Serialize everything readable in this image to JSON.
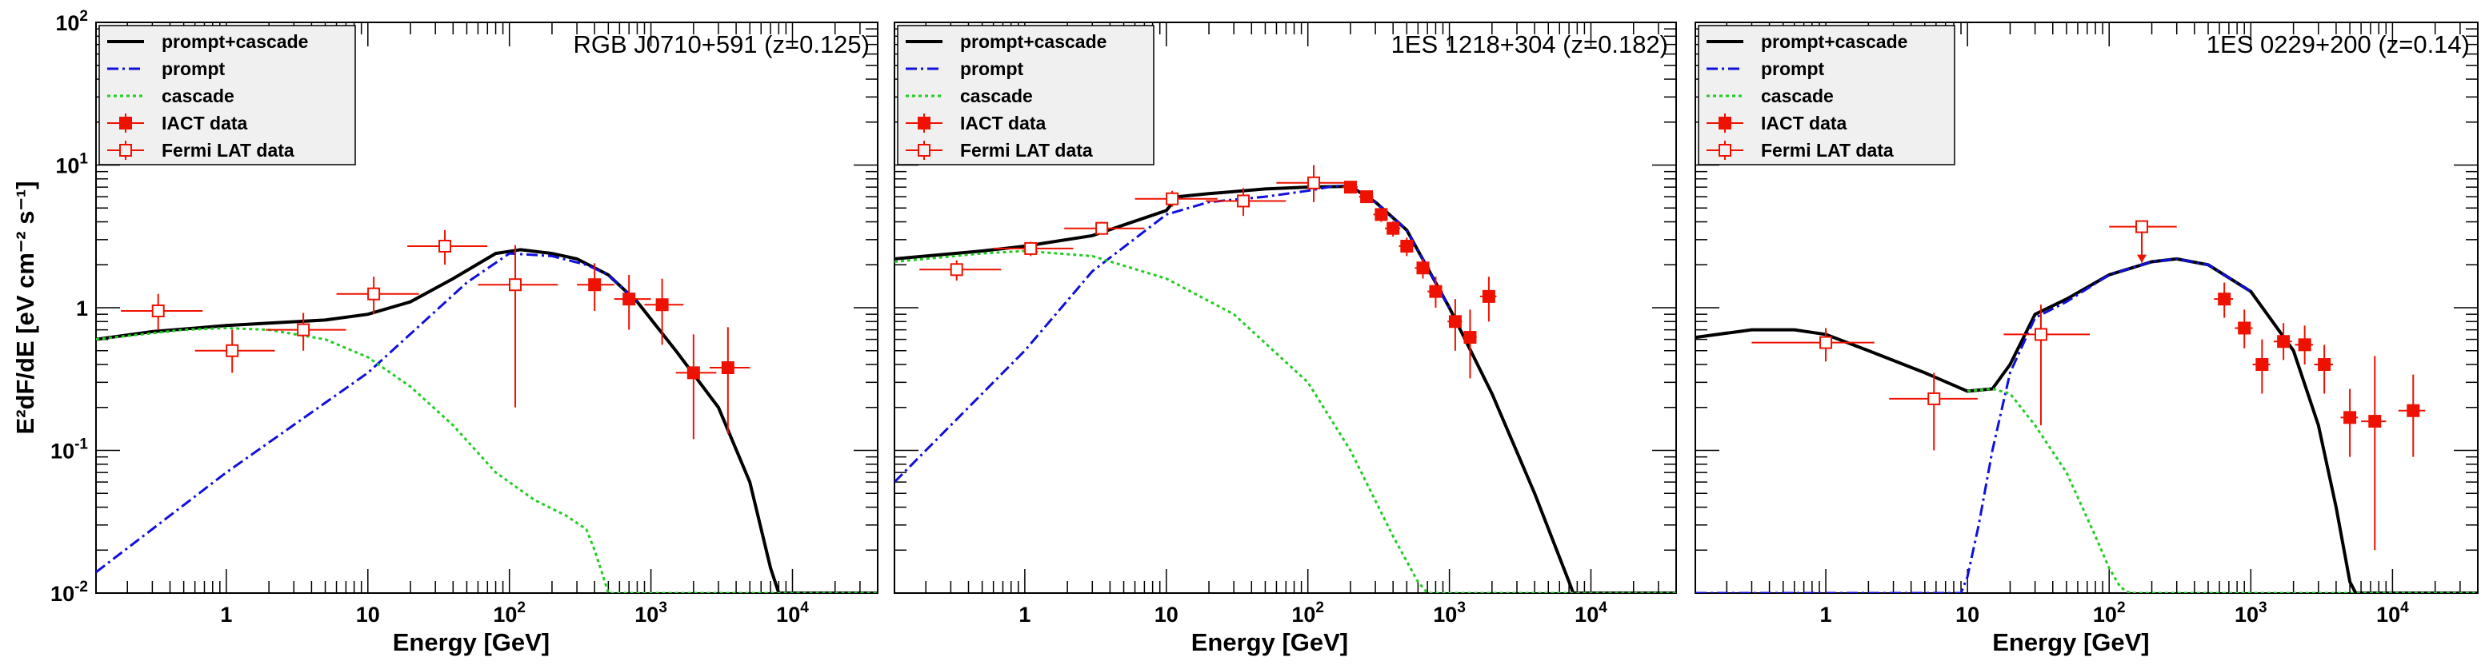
{
  "chart_data": [
    {
      "type": "line",
      "title": "RGB J0710+591 (z=0.125)",
      "xlabel": "Energy [GeV]",
      "ylabel": "E²dF/dE [eV cm⁻² s⁻¹]",
      "xscale": "log",
      "yscale": "log",
      "xlim": [
        0.12,
        40000
      ],
      "ylim": [
        0.01,
        100
      ],
      "legend": [
        "prompt+cascade",
        "prompt",
        "cascade",
        "IACT data",
        "Fermi LAT data"
      ],
      "series": [
        {
          "name": "prompt+cascade",
          "x": [
            0.12,
            0.3,
            1,
            2,
            5,
            10,
            20,
            40,
            80,
            120,
            200,
            300,
            500,
            800,
            1500,
            3000,
            5000,
            7000,
            8000,
            40000
          ],
          "y": [
            0.6,
            0.68,
            0.75,
            0.78,
            0.82,
            0.9,
            1.1,
            1.6,
            2.4,
            2.55,
            2.4,
            2.2,
            1.7,
            1.1,
            0.5,
            0.2,
            0.06,
            0.015,
            0.01,
            0.01
          ]
        },
        {
          "name": "prompt",
          "x": [
            0.12,
            1,
            10,
            50,
            100,
            200,
            350,
            500,
            800
          ],
          "y": [
            0.014,
            0.07,
            0.35,
            1.5,
            2.4,
            2.3,
            2.0,
            1.7,
            1.1
          ]
        },
        {
          "name": "cascade",
          "x": [
            0.12,
            0.5,
            1,
            2,
            5,
            10,
            20,
            40,
            80,
            150,
            250,
            350,
            400,
            450,
            500,
            600,
            40000
          ],
          "y": [
            0.6,
            0.7,
            0.72,
            0.7,
            0.6,
            0.45,
            0.28,
            0.15,
            0.07,
            0.045,
            0.035,
            0.028,
            0.02,
            0.014,
            0.01,
            0.01,
            0.01
          ]
        },
        {
          "name": "IACT data",
          "x": [
            400,
            700,
            1200,
            2000,
            3500
          ],
          "y": [
            1.45,
            1.15,
            1.05,
            0.35,
            0.38
          ],
          "xerr_lo": [
            100,
            150,
            300,
            500,
            900
          ],
          "xerr_hi": [
            150,
            300,
            500,
            900,
            1500
          ],
          "yerr_lo": [
            0.5,
            0.45,
            0.5,
            0.23,
            0.25
          ],
          "yerr_hi": [
            0.6,
            0.55,
            0.55,
            0.3,
            0.35
          ]
        },
        {
          "name": "Fermi LAT data",
          "x": [
            0.33,
            1.1,
            3.5,
            11,
            35,
            110
          ],
          "y": [
            0.95,
            0.5,
            0.7,
            1.25,
            2.7,
            1.45
          ],
          "xerr_lo": [
            0.15,
            0.5,
            1.6,
            5,
            16,
            50
          ],
          "xerr_hi": [
            0.35,
            1.1,
            3.5,
            12,
            35,
            110
          ],
          "yerr_lo": [
            0.25,
            0.15,
            0.2,
            0.35,
            0.7,
            1.25
          ],
          "yerr_hi": [
            0.3,
            0.2,
            0.22,
            0.4,
            0.8,
            1.3
          ]
        }
      ]
    },
    {
      "type": "line",
      "title": "1ES 1218+304 (z=0.182)",
      "xlabel": "Energy [GeV]",
      "ylabel": "E²dF/dE [eV cm⁻² s⁻¹]",
      "xscale": "log",
      "yscale": "log",
      "xlim": [
        0.12,
        40000
      ],
      "ylim": [
        0.01,
        100
      ],
      "legend": [
        "prompt+cascade",
        "prompt",
        "cascade",
        "IACT data",
        "Fermi LAT data"
      ],
      "series": [
        {
          "name": "prompt+cascade",
          "x": [
            0.12,
            0.5,
            1,
            3,
            10,
            12,
            20,
            50,
            100,
            200,
            300,
            500,
            1000,
            2000,
            4000,
            7000,
            7500,
            40000
          ],
          "y": [
            2.2,
            2.5,
            2.7,
            3.2,
            4.8,
            6.0,
            6.3,
            6.8,
            7.0,
            7.1,
            5.5,
            3.5,
            1.0,
            0.25,
            0.05,
            0.012,
            0.01,
            0.01
          ]
        },
        {
          "name": "prompt",
          "x": [
            0.12,
            1,
            3,
            10,
            20,
            50,
            100,
            150,
            200,
            300,
            500,
            1000
          ],
          "y": [
            0.06,
            0.5,
            1.8,
            4.5,
            5.5,
            6.0,
            6.6,
            7.1,
            7.2,
            5.5,
            3.5,
            1.0
          ]
        },
        {
          "name": "cascade",
          "x": [
            0.12,
            0.5,
            1,
            3,
            10,
            30,
            100,
            200,
            400,
            600,
            700,
            800,
            40000
          ],
          "y": [
            2.1,
            2.4,
            2.5,
            2.3,
            1.6,
            0.9,
            0.3,
            0.1,
            0.025,
            0.012,
            0.01,
            0.01,
            0.01
          ]
        },
        {
          "name": "IACT data",
          "x": [
            200,
            260,
            330,
            400,
            500,
            650,
            800,
            1100,
            1400,
            1900
          ],
          "y": [
            7.0,
            6.0,
            4.5,
            3.6,
            2.7,
            1.9,
            1.3,
            0.8,
            0.62,
            1.2
          ],
          "xerr_lo": [
            25,
            30,
            40,
            50,
            60,
            80,
            100,
            130,
            160,
            250
          ],
          "xerr_hi": [
            25,
            30,
            40,
            50,
            60,
            80,
            100,
            130,
            160,
            250
          ],
          "yerr_lo": [
            0.6,
            0.5,
            0.5,
            0.45,
            0.4,
            0.3,
            0.3,
            0.3,
            0.3,
            0.4
          ],
          "yerr_hi": [
            0.6,
            0.6,
            0.5,
            0.45,
            0.4,
            0.3,
            0.35,
            0.35,
            0.35,
            0.45
          ]
        },
        {
          "name": "Fermi LAT data",
          "x": [
            0.33,
            1.1,
            3.5,
            11,
            35,
            110
          ],
          "y": [
            1.85,
            2.6,
            3.6,
            5.8,
            5.6,
            7.5
          ],
          "xerr_lo": [
            0.15,
            0.5,
            1.6,
            5,
            16,
            50
          ],
          "xerr_hi": [
            0.35,
            1.1,
            3.5,
            12,
            35,
            110
          ],
          "yerr_lo": [
            0.3,
            0.3,
            0.35,
            0.7,
            1.2,
            2.0
          ],
          "yerr_hi": [
            0.3,
            0.3,
            0.4,
            0.8,
            1.3,
            2.5
          ]
        }
      ]
    },
    {
      "type": "line",
      "title": "1ES 0229+200 (z=0.14)",
      "xlabel": "Energy [GeV]",
      "ylabel": "E²dF/dE [eV cm⁻² s⁻¹]",
      "xscale": "log",
      "yscale": "log",
      "xlim": [
        0.12,
        40000
      ],
      "ylim": [
        0.01,
        100
      ],
      "legend": [
        "prompt+cascade",
        "prompt",
        "cascade",
        "IACT data",
        "Fermi LAT data"
      ],
      "series": [
        {
          "name": "prompt+cascade",
          "x": [
            0.12,
            0.3,
            0.6,
            1,
            2,
            5,
            10,
            15,
            20,
            30,
            50,
            100,
            200,
            300,
            500,
            1000,
            2000,
            3000,
            4000,
            5000,
            5500,
            40000
          ],
          "y": [
            0.62,
            0.7,
            0.7,
            0.65,
            0.5,
            0.35,
            0.26,
            0.27,
            0.4,
            0.9,
            1.15,
            1.7,
            2.1,
            2.2,
            2.0,
            1.3,
            0.5,
            0.15,
            0.04,
            0.012,
            0.01,
            0.01
          ]
        },
        {
          "name": "prompt",
          "x": [
            0.12,
            9,
            10,
            12,
            15,
            20,
            30,
            50,
            100,
            200,
            300,
            500,
            1000
          ],
          "y": [
            0.01,
            0.01,
            0.013,
            0.03,
            0.1,
            0.35,
            0.85,
            1.1,
            1.7,
            2.1,
            2.2,
            2.0,
            1.3
          ]
        },
        {
          "name": "cascade",
          "x": [
            10,
            15,
            20,
            30,
            50,
            80,
            100,
            120,
            140,
            40000
          ],
          "y": [
            0.26,
            0.27,
            0.25,
            0.15,
            0.07,
            0.025,
            0.015,
            0.011,
            0.01,
            0.01
          ]
        },
        {
          "name": "IACT data",
          "x": [
            650,
            900,
            1200,
            1700,
            2400,
            3300,
            5000,
            7500,
            14000
          ],
          "y": [
            1.15,
            0.72,
            0.4,
            0.58,
            0.55,
            0.4,
            0.17,
            0.16,
            0.19
          ],
          "xerr_lo": [
            100,
            130,
            170,
            250,
            350,
            500,
            700,
            1500,
            3000
          ],
          "xerr_hi": [
            100,
            130,
            170,
            250,
            350,
            500,
            700,
            1500,
            3000
          ],
          "yerr_lo": [
            0.3,
            0.2,
            0.15,
            0.15,
            0.15,
            0.15,
            0.08,
            0.14,
            0.1
          ],
          "yerr_hi": [
            0.35,
            0.25,
            0.2,
            0.2,
            0.2,
            0.15,
            0.1,
            0.3,
            0.15
          ]
        },
        {
          "name": "Fermi LAT data",
          "x": [
            1.0,
            5.8,
            33,
            170
          ],
          "y": [
            0.57,
            0.23,
            0.65,
            3.7
          ],
          "xerr_lo": [
            0.7,
            3,
            15,
            70
          ],
          "xerr_hi": [
            1.2,
            6,
            40,
            130
          ],
          "yerr_lo": [
            0.15,
            0.13,
            0.5,
            1.6
          ],
          "yerr_hi": [
            0.15,
            0.12,
            0.4,
            0.0
          ],
          "upper_limit": [
            false,
            false,
            false,
            true
          ]
        }
      ]
    }
  ]
}
